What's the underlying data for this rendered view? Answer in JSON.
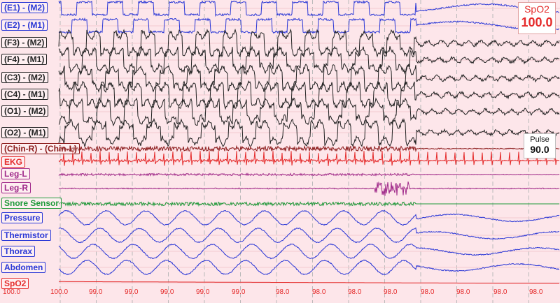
{
  "channels": [
    {
      "label": "(E1) - (M2)",
      "color": "#2a37d6"
    },
    {
      "label": "(E2) - (M1)",
      "color": "#2a37d6"
    },
    {
      "label": "(F3) - (M2)",
      "color": "#222222"
    },
    {
      "label": "(F4) - (M1)",
      "color": "#222222"
    },
    {
      "label": "(C3) - (M2)",
      "color": "#222222"
    },
    {
      "label": "(C4) - (M1)",
      "color": "#222222"
    },
    {
      "label": "(O1) - (M2)",
      "color": "#222222"
    },
    {
      "label": "(O2) - (M1)",
      "color": "#222222"
    },
    {
      "label": "(Chin-R) - (Chin-L)",
      "color": "#8b1a1a"
    },
    {
      "label": "EKG",
      "color": "#e52b2b"
    },
    {
      "label": "Leg-L",
      "color": "#a02a8a"
    },
    {
      "label": "Leg-R",
      "color": "#a02a8a"
    },
    {
      "label": "Snore Sensor",
      "color": "#1f9a3a"
    },
    {
      "label": "Pressure",
      "color": "#2a37d6"
    },
    {
      "label": "Thermistor",
      "color": "#2a37d6"
    },
    {
      "label": "Thorax",
      "color": "#2a37d6"
    },
    {
      "label": "Abdomen",
      "color": "#2a37d6"
    },
    {
      "label": "SpO2",
      "color": "#e52b2b"
    }
  ],
  "spo2_display": {
    "title": "SpO2",
    "value": "100.0"
  },
  "pulse_display": {
    "title": "Pulse",
    "value": "90.0"
  },
  "spo2_ticks": [
    "100.0",
    "100.0",
    "99.0",
    "99.0",
    "99.0",
    "99.0",
    "99.0",
    "98.0",
    "98.0",
    "98.0",
    "98.0",
    "98.0",
    "98.0",
    "98.0",
    "98.0"
  ],
  "colors": {
    "background": "#fde6ea",
    "eeg": "#222222",
    "eog": "#2a37d6",
    "chin": "#8b1a1a",
    "ekg": "#e52b2b",
    "leg": "#a02a8a",
    "snore": "#1f9a3a",
    "resp": "#2a37d6"
  }
}
